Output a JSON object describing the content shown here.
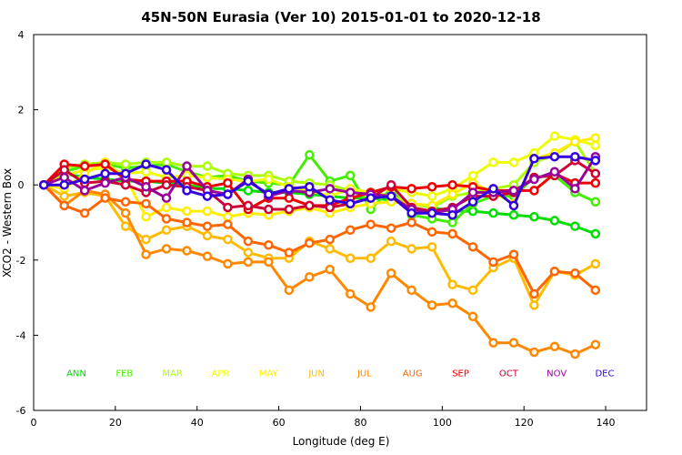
{
  "chart_data": {
    "type": "line",
    "title": "45N-50N Eurasia (Ver 10)   2015-01-01 to 2020-12-18",
    "xlabel": "Longitude (deg E)",
    "ylabel": "XCO2 - Western Box",
    "xlim": [
      0,
      150
    ],
    "ylim": [
      -6,
      4
    ],
    "xticks": [
      0,
      20,
      40,
      60,
      80,
      100,
      120,
      140
    ],
    "yticks": [
      -6,
      -4,
      -2,
      0,
      2,
      4
    ],
    "x": [
      2.5,
      7.5,
      12.5,
      17.5,
      22.5,
      27.5,
      32.5,
      37.5,
      42.5,
      47.5,
      52.5,
      57.5,
      62.5,
      67.5,
      72.5,
      77.5,
      82.5,
      87.5,
      92.5,
      97.5,
      102.5,
      107.5,
      112.5,
      117.5,
      122.5,
      127.5,
      132.5,
      137.5
    ],
    "series": [
      {
        "name": "ANN",
        "color": "#00dd00",
        "values": [
          0,
          0.3,
          0.2,
          0.15,
          0.1,
          0.1,
          0.05,
          0,
          -0.1,
          -0.1,
          -0.15,
          -0.2,
          -0.2,
          -0.25,
          -0.3,
          -0.35,
          -0.35,
          -0.4,
          -0.5,
          -0.6,
          -0.7,
          -0.7,
          -0.75,
          -0.8,
          -0.85,
          -0.95,
          -1.1,
          -1.3
        ]
      },
      {
        "name": "FEB",
        "color": "#44ee00",
        "values": [
          0,
          0.35,
          0.5,
          0.55,
          0.45,
          0.5,
          0.55,
          0.35,
          0.2,
          0.25,
          0.1,
          0.05,
          0.0,
          0.8,
          0.1,
          0.25,
          -0.65,
          -0.1,
          -0.8,
          -0.9,
          -1.0,
          -0.5,
          -0.3,
          -0.3,
          0.2,
          0.25,
          -0.2,
          -0.45
        ]
      },
      {
        "name": "MAR",
        "color": "#aaff00",
        "values": [
          0,
          0.45,
          0.55,
          0.6,
          0.55,
          0.6,
          0.6,
          0.5,
          0.5,
          0.3,
          0.25,
          0.25,
          0.1,
          0.05,
          0.0,
          -0.15,
          -0.2,
          -0.3,
          -0.5,
          -0.6,
          -0.3,
          -0.2,
          -0.1,
          0.0,
          0.6,
          0.8,
          1.15,
          0.3
        ]
      },
      {
        "name": "APR",
        "color": "#eeff00",
        "values": [
          0,
          0.25,
          0.4,
          0.45,
          0.3,
          0.35,
          0.2,
          0.25,
          0.2,
          0.15,
          0.1,
          0.15,
          -0.05,
          -0.15,
          -0.3,
          -0.1,
          -0.2,
          -0.1,
          -0.2,
          -0.3,
          -0.1,
          0.25,
          0.6,
          0.6,
          0.85,
          1.3,
          1.2,
          1.05
        ]
      },
      {
        "name": "MAY",
        "color": "#ffee00",
        "values": [
          0,
          -0.1,
          0.3,
          0.6,
          0.2,
          -0.85,
          -0.6,
          -0.7,
          -0.7,
          -0.85,
          -0.75,
          -0.8,
          -0.7,
          -0.6,
          -0.75,
          -0.6,
          -0.5,
          -0.45,
          -0.5,
          -0.55,
          -0.25,
          0.05,
          -0.2,
          -0.5,
          0.7,
          0.85,
          1.15,
          1.25
        ]
      },
      {
        "name": "JUN",
        "color": "#ffbb00",
        "values": [
          0,
          -0.3,
          -0.2,
          -0.3,
          -1.1,
          -1.45,
          -1.2,
          -1.1,
          -1.35,
          -1.45,
          -1.8,
          -1.95,
          -1.95,
          -1.5,
          -1.7,
          -1.95,
          -1.95,
          -1.5,
          -1.7,
          -1.65,
          -2.65,
          -2.8,
          -2.2,
          -1.95,
          -3.2,
          -2.3,
          -2.4,
          -2.1
        ]
      },
      {
        "name": "JUL",
        "color": "#ff8800",
        "values": [
          0,
          -0.55,
          -0.15,
          -0.25,
          -0.75,
          -1.85,
          -1.7,
          -1.75,
          -1.9,
          -2.1,
          -2.05,
          -2.05,
          -2.8,
          -2.45,
          -2.25,
          -2.9,
          -3.25,
          -2.35,
          -2.8,
          -3.2,
          -3.15,
          -3.5,
          -4.2,
          -4.2,
          -4.45,
          -4.3,
          -4.5,
          -4.25
        ]
      },
      {
        "name": "AUG",
        "color": "#ff6600",
        "values": [
          0,
          -0.55,
          -0.75,
          -0.35,
          -0.45,
          -0.5,
          -0.9,
          -1.0,
          -1.1,
          -1.05,
          -1.5,
          -1.6,
          -1.8,
          -1.55,
          -1.45,
          -1.2,
          -1.05,
          -1.15,
          -1.0,
          -1.25,
          -1.3,
          -1.65,
          -2.05,
          -1.85,
          -2.9,
          -2.3,
          -2.35,
          -2.8
        ]
      },
      {
        "name": "SEP",
        "color": "#ee0000",
        "values": [
          0,
          0.55,
          0.5,
          0.55,
          0.15,
          0.1,
          0.1,
          0.1,
          -0.05,
          0.05,
          -0.65,
          -0.35,
          -0.35,
          -0.55,
          -0.55,
          -0.35,
          -0.2,
          -0.05,
          -0.1,
          -0.05,
          0.0,
          -0.05,
          -0.15,
          -0.15,
          -0.15,
          0.3,
          0.05,
          0.05
        ]
      },
      {
        "name": "OCT",
        "color": "#cc0033",
        "values": [
          0,
          0.4,
          0.05,
          0.1,
          0.0,
          -0.2,
          0.0,
          -0.05,
          -0.15,
          -0.6,
          -0.55,
          -0.65,
          -0.65,
          -0.55,
          -0.6,
          -0.5,
          -0.35,
          0.0,
          -0.6,
          -0.7,
          -0.6,
          -0.3,
          -0.3,
          -0.2,
          0.2,
          0.25,
          0.65,
          0.3
        ]
      },
      {
        "name": "NOV",
        "color": "#990099",
        "values": [
          0,
          0.2,
          -0.15,
          0.05,
          0.2,
          -0.05,
          -0.35,
          0.5,
          -0.15,
          -0.25,
          0.15,
          -0.3,
          -0.15,
          -0.2,
          -0.1,
          -0.2,
          -0.25,
          -0.3,
          -0.65,
          -0.75,
          -0.65,
          -0.2,
          -0.2,
          -0.15,
          0.15,
          0.35,
          -0.1,
          0.75
        ]
      },
      {
        "name": "DEC",
        "color": "#3300dd",
        "values": [
          0,
          0.0,
          0.15,
          0.3,
          0.3,
          0.55,
          0.4,
          -0.15,
          -0.3,
          -0.25,
          0.1,
          -0.25,
          -0.1,
          -0.05,
          -0.4,
          -0.5,
          -0.35,
          -0.3,
          -0.75,
          -0.75,
          -0.8,
          -0.45,
          -0.1,
          -0.55,
          0.7,
          0.75,
          0.75,
          0.65
        ]
      }
    ]
  }
}
